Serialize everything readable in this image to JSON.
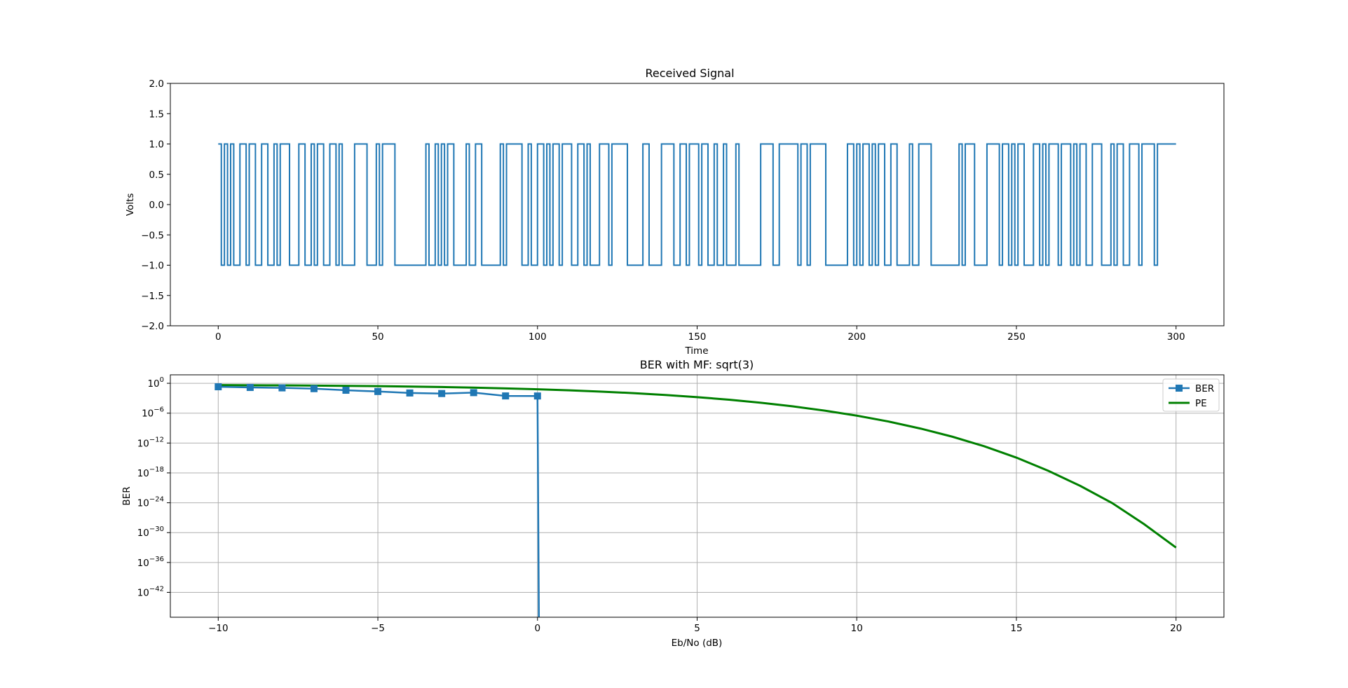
{
  "chart_data": [
    {
      "type": "line",
      "title": "Received Signal",
      "xlabel": "Time",
      "ylabel": "Volts",
      "xlim": [
        -15,
        315
      ],
      "ylim": [
        -2.0,
        2.0
      ],
      "xticks": [
        0,
        50,
        100,
        150,
        200,
        250,
        300
      ],
      "xtick_labels": [
        "0",
        "50",
        "100",
        "150",
        "200",
        "250",
        "300"
      ],
      "yticks": [
        -2.0,
        -1.5,
        -1.0,
        -0.5,
        0.0,
        0.5,
        1.0,
        1.5,
        2.0
      ],
      "ytick_labels": [
        "−2.0",
        "−1.5",
        "−1.0",
        "−0.5",
        "0.0",
        "0.5",
        "1.0",
        "1.5",
        "2.0"
      ],
      "grid": false,
      "color": "#1f77b4",
      "step": "post",
      "x_end": 300,
      "symbols": [
        1,
        -1,
        1,
        -1,
        1,
        -1,
        -1,
        1,
        1,
        -1,
        1,
        1,
        -1,
        -1,
        1,
        1,
        -1,
        -1,
        1,
        -1,
        1,
        1,
        1,
        -1,
        -1,
        -1,
        1,
        1,
        -1,
        -1,
        1,
        -1,
        1,
        1,
        -1,
        -1,
        1,
        1,
        -1,
        1,
        -1,
        -1,
        -1,
        -1,
        1,
        1,
        1,
        1,
        -1,
        -1,
        -1,
        1,
        -1,
        1,
        1,
        1,
        1,
        -1,
        -1,
        -1,
        -1,
        -1,
        -1,
        -1,
        -1,
        -1,
        -1,
        1,
        -1,
        -1,
        1,
        -1,
        1,
        -1,
        1,
        1,
        -1,
        -1,
        -1,
        -1,
        1,
        -1,
        -1,
        1,
        1,
        -1,
        -1,
        -1,
        -1,
        -1,
        -1,
        1,
        -1,
        1,
        1,
        1,
        1,
        1,
        -1,
        -1,
        1,
        -1,
        -1,
        1,
        1,
        -1,
        1,
        -1,
        1,
        1,
        -1,
        1,
        1,
        1,
        -1,
        -1,
        1,
        1,
        -1,
        1,
        -1,
        -1,
        -1,
        1,
        1,
        1,
        -1,
        1,
        1,
        1,
        1,
        1,
        -1,
        -1,
        -1,
        -1,
        -1,
        1,
        1,
        -1,
        -1,
        -1,
        -1,
        1,
        1,
        1,
        1,
        -1,
        -1,
        1,
        1,
        -1,
        1,
        1,
        1,
        -1,
        1,
        1,
        -1,
        -1,
        1,
        -1,
        -1,
        1,
        -1,
        -1,
        -1,
        1,
        -1,
        -1,
        -1,
        -1,
        -1,
        -1,
        -1,
        1,
        1,
        1,
        1,
        -1,
        -1,
        1,
        1,
        1,
        1,
        1,
        1,
        -1,
        1,
        1,
        -1,
        1,
        1,
        1,
        1,
        1,
        -1,
        -1,
        -1,
        -1,
        -1,
        -1,
        -1,
        1,
        1,
        -1,
        1,
        -1,
        1,
        1,
        -1,
        1,
        -1,
        1,
        1,
        -1,
        -1,
        1,
        1,
        -1,
        -1,
        -1,
        -1,
        1,
        -1,
        -1,
        1,
        1,
        1,
        1,
        -1,
        -1,
        -1,
        -1,
        -1,
        -1,
        -1,
        -1,
        -1,
        1,
        -1,
        1,
        1,
        1,
        -1,
        -1,
        -1,
        -1,
        1,
        1,
        1,
        1,
        -1,
        1,
        1,
        -1,
        1,
        -1,
        1,
        1,
        -1,
        -1,
        -1,
        1,
        1,
        -1,
        1,
        -1,
        1,
        1,
        1,
        -1,
        1,
        1,
        1,
        -1,
        1,
        -1,
        1,
        1,
        -1,
        -1,
        1,
        1,
        1,
        -1,
        -1,
        -1,
        1,
        -1,
        1,
        1,
        -1,
        -1,
        1,
        1,
        1,
        -1,
        1,
        1,
        1,
        1,
        -1,
        1,
        1,
        1,
        1,
        1,
        1
      ]
    },
    {
      "type": "line",
      "title": "BER with MF: sqrt(3)",
      "xlabel": "Eb/No (dB)",
      "ylabel": "BER",
      "yscale": "log",
      "xlim": [
        -11.5,
        21.5
      ],
      "ylog_lim": [
        -47,
        1.7
      ],
      "xticks": [
        -10,
        -5,
        0,
        5,
        10,
        15,
        20
      ],
      "xtick_labels": [
        "−10",
        "−5",
        "0",
        "5",
        "10",
        "15",
        "20"
      ],
      "yticks_exp": [
        0,
        -6,
        -12,
        -18,
        -24,
        -30,
        -36,
        -42
      ],
      "ytick_base": "10",
      "ytick_exponents": [
        "0",
        "−6",
        "−12",
        "−18",
        "−24",
        "−30",
        "−36",
        "−42"
      ],
      "grid": true,
      "legend_position": "top-right",
      "series": [
        {
          "name": "BER",
          "color": "#1f77b4",
          "marker": "square",
          "x": [
            -10,
            -9,
            -8,
            -7,
            -6,
            -5,
            -4,
            -3,
            -2,
            -1,
            0
          ],
          "y_log10": [
            -0.7,
            -0.84,
            -0.92,
            -1.08,
            -1.4,
            -1.65,
            -1.95,
            -2.06,
            -1.88,
            -2.54,
            -2.55
          ],
          "drop_to_zero_at": 0
        },
        {
          "name": "PE",
          "color": "#008000",
          "marker": "none",
          "x": [
            -10,
            -9,
            -8,
            -7,
            -6,
            -5,
            -4,
            -3,
            -2,
            -1,
            0,
            1,
            2,
            3,
            4,
            5,
            6,
            7,
            8,
            9,
            10,
            11,
            12,
            13,
            14,
            15,
            16,
            17,
            18,
            19,
            20
          ],
          "y_log10": [
            -0.36,
            -0.39,
            -0.42,
            -0.46,
            -0.51,
            -0.57,
            -0.65,
            -0.75,
            -0.87,
            -1.03,
            -1.2,
            -1.41,
            -1.67,
            -1.97,
            -2.34,
            -2.78,
            -3.3,
            -3.91,
            -4.63,
            -5.5,
            -6.5,
            -7.69,
            -9.1,
            -10.74,
            -12.67,
            -14.93,
            -17.59,
            -20.61,
            -24.06,
            -28.3,
            -33.0
          ]
        }
      ]
    }
  ]
}
